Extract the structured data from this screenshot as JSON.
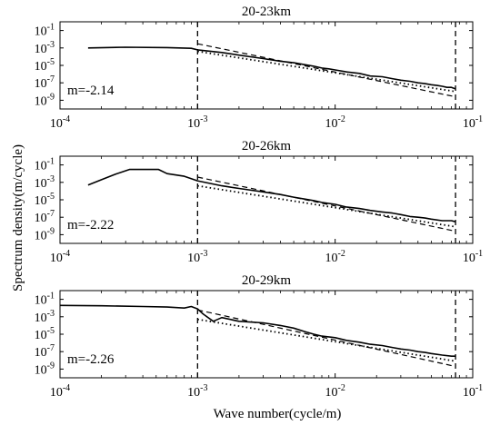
{
  "figure": {
    "xlabel": "Wave number(cycle/m)",
    "ylabel": "Spectrum density(m/cycle)"
  },
  "chart_data": [
    {
      "type": "line",
      "title": "20-23km",
      "annotation": "m=-2.14",
      "xscale": "log",
      "yscale": "log",
      "xlim": [
        0.0001,
        0.1
      ],
      "ylim": [
        1e-10,
        1
      ],
      "x_ticks": [
        "10^-4",
        "10^-3",
        "10^-2",
        "10^-1"
      ],
      "y_ticks": [
        "10^-1",
        "10^-3",
        "10^-5",
        "10^-7",
        "10^-9"
      ],
      "series": [
        {
          "style": "solid",
          "x": [
            0.00016,
            0.0003,
            0.0006,
            0.0009,
            0.001,
            0.0015,
            0.002,
            0.003,
            0.004,
            0.005,
            0.006,
            0.007,
            0.008,
            0.009,
            0.01,
            0.012,
            0.015,
            0.018,
            0.022,
            0.026,
            0.03,
            0.035,
            0.04,
            0.045,
            0.05,
            0.055,
            0.06,
            0.065,
            0.07,
            0.075
          ],
          "y": [
            0.001,
            0.0012,
            0.0011,
            0.0009,
            0.0006,
            0.0003,
            0.00015,
            6e-05,
            3e-05,
            2e-05,
            1.2e-05,
            8e-06,
            5e-06,
            4e-06,
            3e-06,
            1.8e-06,
            1.2e-06,
            6e-07,
            5e-07,
            3e-07,
            2e-07,
            1.5e-07,
            1e-07,
            8e-08,
            6e-08,
            5e-08,
            4e-08,
            3e-08,
            3e-08,
            2e-08
          ]
        },
        {
          "style": "dashed",
          "x": [
            0.001,
            0.075
          ],
          "y": [
            0.003,
            2.5e-09
          ]
        },
        {
          "style": "dotted",
          "x": [
            0.001,
            0.075
          ],
          "y": [
            0.0004,
            1e-08
          ]
        }
      ],
      "vlines": [
        0.001,
        0.075
      ]
    },
    {
      "type": "line",
      "title": "20-26km",
      "annotation": "m=-2.22",
      "xscale": "log",
      "yscale": "log",
      "xlim": [
        0.0001,
        0.1
      ],
      "ylim": [
        1e-10,
        1
      ],
      "x_ticks": [
        "10^-4",
        "10^-3",
        "10^-2",
        "10^-1"
      ],
      "y_ticks": [
        "10^-1",
        "10^-3",
        "10^-5",
        "10^-7",
        "10^-9"
      ],
      "series": [
        {
          "style": "solid",
          "x": [
            0.00016,
            0.0002,
            0.00025,
            0.00032,
            0.0004,
            0.00052,
            0.0006,
            0.0008,
            0.001,
            0.0015,
            0.002,
            0.003,
            0.004,
            0.005,
            0.006,
            0.007,
            0.008,
            0.01,
            0.012,
            0.015,
            0.018,
            0.022,
            0.026,
            0.03,
            0.035,
            0.04,
            0.045,
            0.05,
            0.06,
            0.07,
            0.075
          ],
          "y": [
            0.0005,
            0.002,
            0.008,
            0.03,
            0.03,
            0.03,
            0.01,
            0.005,
            0.0015,
            0.0004,
            0.0002,
            8e-05,
            4e-05,
            2e-05,
            1.2e-05,
            8e-06,
            5e-06,
            3e-06,
            1.5e-06,
            1e-06,
            6e-07,
            4e-07,
            3e-07,
            2e-07,
            1.2e-07,
            1e-07,
            8e-08,
            6e-08,
            4e-08,
            4e-08,
            3e-08
          ]
        },
        {
          "style": "dashed",
          "x": [
            0.001,
            0.075
          ],
          "y": [
            0.004,
            2.5e-09
          ]
        },
        {
          "style": "dotted",
          "x": [
            0.001,
            0.075
          ],
          "y": [
            0.0004,
            8e-09
          ]
        }
      ],
      "vlines": [
        0.001,
        0.075
      ]
    },
    {
      "type": "line",
      "title": "20-29km",
      "annotation": "m=-2.26",
      "xscale": "log",
      "yscale": "log",
      "xlim": [
        0.0001,
        0.1
      ],
      "ylim": [
        1e-10,
        1
      ],
      "x_ticks": [
        "10^-4",
        "10^-3",
        "10^-2",
        "10^-1"
      ],
      "y_ticks": [
        "10^-1",
        "10^-3",
        "10^-5",
        "10^-7",
        "10^-9"
      ],
      "series": [
        {
          "style": "solid",
          "x": [
            0.0001,
            0.0002,
            0.0004,
            0.0006,
            0.0008,
            0.0009,
            0.001,
            0.0011,
            0.0013,
            0.0015,
            0.002,
            0.003,
            0.004,
            0.005,
            0.006,
            0.007,
            0.008,
            0.01,
            0.012,
            0.015,
            0.018,
            0.022,
            0.026,
            0.03,
            0.035,
            0.04,
            0.045,
            0.05,
            0.06,
            0.07,
            0.075
          ],
          "y": [
            0.02,
            0.018,
            0.015,
            0.013,
            0.01,
            0.015,
            0.008,
            0.002,
            0.0003,
            0.0008,
            0.0003,
            0.0002,
            0.0001,
            5e-05,
            2e-05,
            1e-05,
            6e-06,
            4e-06,
            2e-06,
            1.2e-06,
            7e-07,
            5e-07,
            3e-07,
            2e-07,
            1.5e-07,
            1e-07,
            8e-08,
            6e-08,
            4e-08,
            3e-08,
            3e-08
          ]
        },
        {
          "style": "dashed",
          "x": [
            0.001,
            0.075
          ],
          "y": [
            0.006,
            2e-09
          ]
        },
        {
          "style": "dotted",
          "x": [
            0.001,
            0.075
          ],
          "y": [
            0.0005,
            8e-09
          ]
        }
      ],
      "vlines": [
        0.001,
        0.075
      ]
    }
  ]
}
